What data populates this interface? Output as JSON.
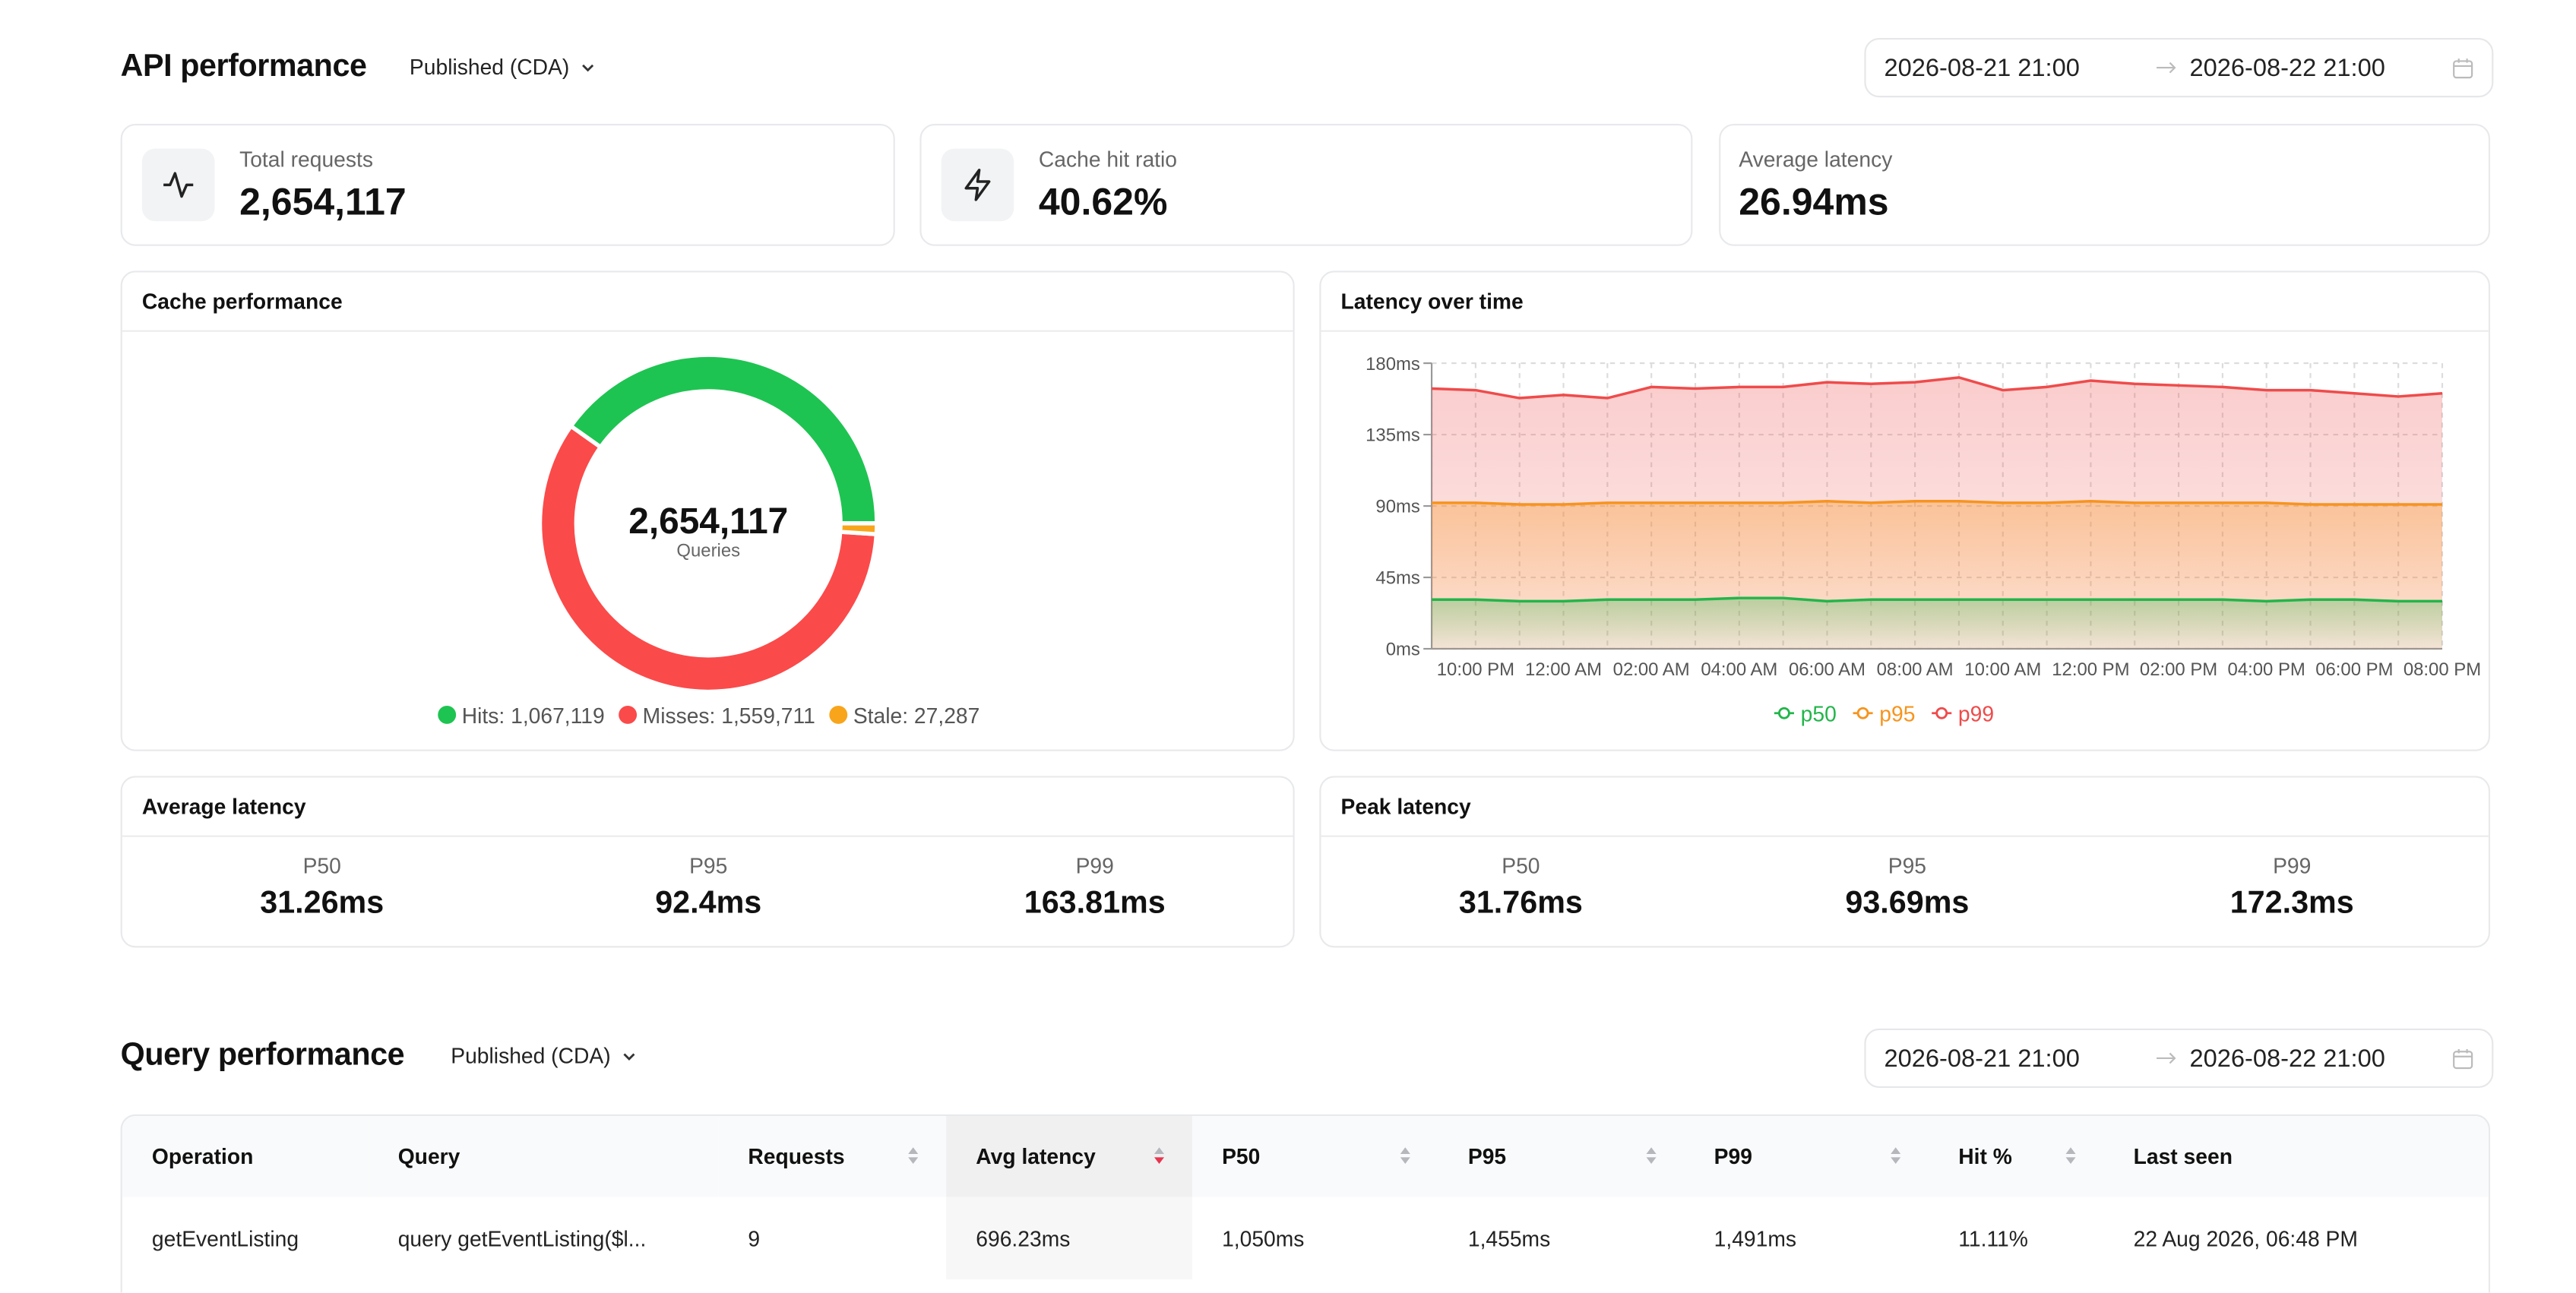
{
  "api_performance": {
    "title": "API performance",
    "environment": "Published (CDA)",
    "date_from": "2026-08-21 21:00",
    "date_to": "2026-08-22 21:00"
  },
  "stats": [
    {
      "label": "Total requests",
      "value": "2,654,117"
    },
    {
      "label": "Cache hit ratio",
      "value": "40.62%"
    },
    {
      "label": "Average latency",
      "value": "26.94ms"
    }
  ],
  "chart_data": [
    {
      "type": "donut",
      "title": "Cache performance",
      "center_value": "2,654,117",
      "center_label": "Queries",
      "categories": [
        "Hits",
        "Misses",
        "Stale"
      ],
      "values": [
        1067119,
        1559711,
        27287
      ],
      "value_labels": [
        "Hits: 1,067,119",
        "Misses: 1,559,711",
        "Stale: 27,287"
      ],
      "colors": [
        "#1ec451",
        "#fb4a4a",
        "#f8a51c"
      ]
    },
    {
      "type": "line",
      "title": "Latency over time",
      "categories": [
        null,
        "10:00 PM",
        null,
        "12:00 AM",
        null,
        "02:00 AM",
        null,
        "04:00 AM",
        null,
        "06:00 AM",
        null,
        "08:00 AM",
        null,
        "10:00 AM",
        null,
        "12:00 PM",
        null,
        "02:00 PM",
        null,
        "04:00 PM",
        null,
        "06:00 PM",
        null,
        "08:00 PM"
      ],
      "ylim": [
        0,
        180
      ],
      "yticks": [
        {
          "value": 0,
          "label": "0ms"
        },
        {
          "value": 45,
          "label": "45ms"
        },
        {
          "value": 90,
          "label": "90ms"
        },
        {
          "value": 135,
          "label": "135ms"
        },
        {
          "value": 180,
          "label": "180ms"
        }
      ],
      "grid": true,
      "legend": "bottom",
      "series": [
        {
          "name": "p50",
          "color": "#22b54a",
          "values": [
            31,
            31,
            30,
            30,
            31,
            31,
            31,
            32,
            32,
            30,
            31,
            31,
            31,
            31,
            31,
            31,
            31,
            31,
            31,
            30,
            31,
            31,
            30,
            30
          ]
        },
        {
          "name": "p95",
          "color": "#f7941d",
          "values": [
            92,
            92,
            91,
            91,
            92,
            92,
            92,
            92,
            92,
            93,
            92,
            93,
            93,
            92,
            92,
            93,
            92,
            92,
            92,
            92,
            91,
            91,
            91,
            91
          ]
        },
        {
          "name": "p99",
          "color": "#ef4b4b",
          "values": [
            164,
            163,
            158,
            160,
            158,
            165,
            164,
            165,
            165,
            168,
            167,
            168,
            171,
            163,
            165,
            169,
            167,
            166,
            165,
            163,
            163,
            161,
            159,
            161
          ]
        }
      ]
    }
  ],
  "average_latency": {
    "title": "Average latency",
    "items": [
      {
        "label": "P50",
        "value": "31.26ms"
      },
      {
        "label": "P95",
        "value": "92.4ms"
      },
      {
        "label": "P99",
        "value": "163.81ms"
      }
    ]
  },
  "peak_latency": {
    "title": "Peak latency",
    "items": [
      {
        "label": "P50",
        "value": "31.76ms"
      },
      {
        "label": "P95",
        "value": "93.69ms"
      },
      {
        "label": "P99",
        "value": "172.3ms"
      }
    ]
  },
  "query_performance": {
    "title": "Query performance",
    "environment": "Published (CDA)",
    "date_from": "2026-08-21 21:00",
    "date_to": "2026-08-22 21:00",
    "table": {
      "columns": [
        "Operation",
        "Query",
        "Requests",
        "Avg latency",
        "P50",
        "P95",
        "P99",
        "Hit %",
        "Last seen"
      ],
      "rows": [
        [
          "getEventListing",
          "query getEventListing($l...",
          "9",
          "696.23ms",
          "1,050ms",
          "1,455ms",
          "1,491ms",
          "11.11%",
          "22 Aug 2026, 06:48 PM"
        ]
      ]
    }
  }
}
